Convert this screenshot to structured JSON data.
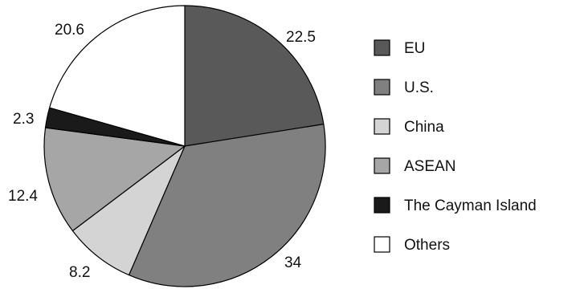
{
  "chart_data": {
    "type": "pie",
    "title": "",
    "categories": [
      "EU",
      "U.S.",
      "China",
      "ASEAN",
      "The Cayman Island",
      "Others"
    ],
    "values": [
      22.5,
      34,
      8.2,
      12.4,
      2.3,
      20.6
    ],
    "data_labels": [
      "22.5",
      "34",
      "8.2",
      "12.4",
      "2.3",
      "20.6"
    ],
    "colors": [
      "#595959",
      "#808080",
      "#d4d4d4",
      "#a6a6a6",
      "#1a1a1a",
      "#ffffff"
    ],
    "start_angle": "12 o'clock",
    "direction": "clockwise",
    "legend_position": "right"
  }
}
